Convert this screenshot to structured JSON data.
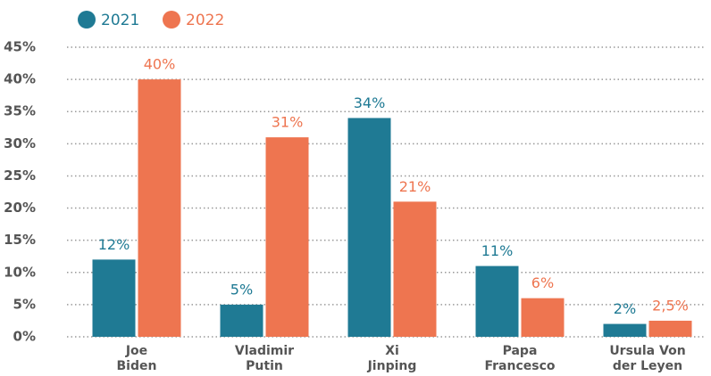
{
  "chart_data": {
    "type": "bar",
    "categories": [
      "Joe Biden",
      "Vladimir Putin",
      "Xi Jinping",
      "Papa Francesco",
      "Ursula Von der Leyen"
    ],
    "series": [
      {
        "name": "2021",
        "color": "#1f7a94",
        "values": [
          12,
          5,
          34,
          11,
          2
        ],
        "value_labels": [
          "12%",
          "5%",
          "34%",
          "11%",
          "2%"
        ]
      },
      {
        "name": "2022",
        "color": "#ee7550",
        "values": [
          40,
          31,
          21,
          6,
          2.5
        ],
        "value_labels": [
          "40%",
          "31%",
          "21%",
          "6%",
          "2,5%"
        ]
      }
    ],
    "ylim": [
      0,
      45
    ],
    "yticks": [
      {
        "value": 0,
        "label": "0%"
      },
      {
        "value": 5,
        "label": "5%"
      },
      {
        "value": 10,
        "label": "10%"
      },
      {
        "value": 15,
        "label": "15%"
      },
      {
        "value": 20,
        "label": "20%"
      },
      {
        "value": 25,
        "label": "25%"
      },
      {
        "value": 30,
        "label": "30%"
      },
      {
        "value": 35,
        "label": "35%"
      },
      {
        "value": 40,
        "label": "40%"
      },
      {
        "value": 45,
        "label": "45%"
      }
    ],
    "grid": true,
    "legend": "top-left"
  }
}
